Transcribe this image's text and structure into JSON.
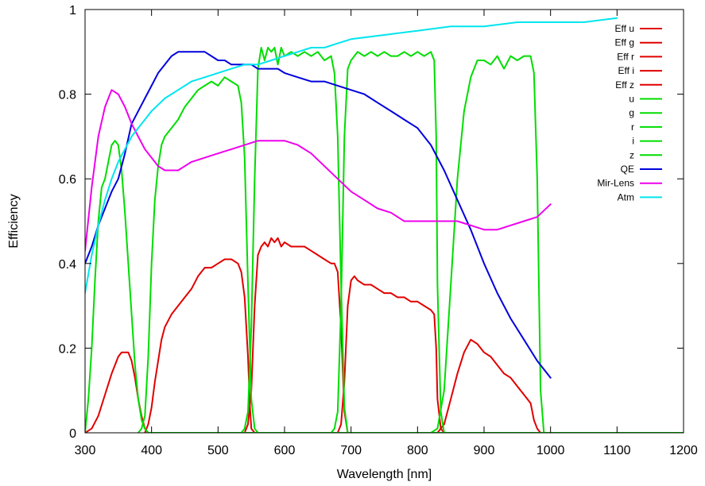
{
  "chart_data": {
    "type": "line",
    "title": "",
    "xlabel": "Wavelength [nm]",
    "ylabel": "Efficiency",
    "xlim": [
      300,
      1200
    ],
    "ylim": [
      0,
      1
    ],
    "xticks": [
      300,
      400,
      500,
      600,
      700,
      800,
      900,
      1000,
      1100,
      1200
    ],
    "yticks": [
      0,
      0.2,
      0.4,
      0.6,
      0.8,
      1
    ],
    "ytick_labels": [
      "0",
      "0.2",
      "0.4",
      "0.6",
      "0.8",
      "1"
    ],
    "grid": false,
    "legend_position": "top-right",
    "series": [
      {
        "name": "Eff u",
        "color": "#e00000",
        "x": [
          300,
          310,
          320,
          330,
          340,
          350,
          355,
          360,
          365,
          370,
          375,
          380,
          385,
          390,
          395,
          400,
          410,
          1200
        ],
        "y": [
          0,
          0.01,
          0.04,
          0.09,
          0.14,
          0.18,
          0.19,
          0.19,
          0.19,
          0.17,
          0.13,
          0.08,
          0.04,
          0.01,
          0,
          0,
          0,
          0
        ]
      },
      {
        "name": "Eff g",
        "color": "#e00000",
        "x": [
          390,
          395,
          400,
          405,
          410,
          415,
          420,
          430,
          440,
          450,
          460,
          470,
          480,
          490,
          500,
          510,
          520,
          530,
          535,
          540,
          545,
          548,
          550,
          555,
          1200
        ],
        "y": [
          0,
          0.02,
          0.06,
          0.12,
          0.17,
          0.22,
          0.25,
          0.28,
          0.3,
          0.32,
          0.34,
          0.37,
          0.39,
          0.39,
          0.4,
          0.41,
          0.41,
          0.4,
          0.38,
          0.32,
          0.18,
          0.06,
          0.01,
          0,
          0
        ]
      },
      {
        "name": "Eff r",
        "color": "#e00000",
        "x": [
          540,
          545,
          550,
          555,
          560,
          565,
          570,
          575,
          580,
          585,
          590,
          595,
          600,
          610,
          620,
          630,
          640,
          650,
          660,
          670,
          675,
          680,
          685,
          690,
          695,
          700,
          1200
        ],
        "y": [
          0,
          0.02,
          0.1,
          0.3,
          0.42,
          0.44,
          0.45,
          0.44,
          0.46,
          0.45,
          0.46,
          0.44,
          0.45,
          0.44,
          0.44,
          0.44,
          0.43,
          0.42,
          0.41,
          0.4,
          0.4,
          0.38,
          0.25,
          0.05,
          0,
          0,
          0
        ]
      },
      {
        "name": "Eff i",
        "color": "#e00000",
        "x": [
          680,
          685,
          690,
          695,
          700,
          705,
          710,
          720,
          730,
          740,
          750,
          760,
          770,
          780,
          790,
          800,
          810,
          820,
          825,
          828,
          830,
          835,
          840,
          1200
        ],
        "y": [
          0,
          0.02,
          0.12,
          0.3,
          0.36,
          0.37,
          0.36,
          0.35,
          0.35,
          0.34,
          0.33,
          0.33,
          0.32,
          0.32,
          0.31,
          0.31,
          0.3,
          0.29,
          0.28,
          0.2,
          0.08,
          0.01,
          0,
          0
        ]
      },
      {
        "name": "Eff z",
        "color": "#e00000",
        "x": [
          820,
          830,
          840,
          850,
          860,
          870,
          880,
          890,
          900,
          910,
          920,
          930,
          940,
          950,
          960,
          970,
          975,
          980,
          985,
          1200
        ],
        "y": [
          0,
          0,
          0.02,
          0.08,
          0.14,
          0.19,
          0.22,
          0.21,
          0.19,
          0.18,
          0.16,
          0.14,
          0.13,
          0.11,
          0.09,
          0.07,
          0.03,
          0.01,
          0,
          0
        ]
      },
      {
        "name": "u",
        "color": "#00dd00",
        "x": [
          300,
          305,
          310,
          315,
          320,
          325,
          330,
          335,
          340,
          345,
          350,
          355,
          360,
          365,
          370,
          375,
          380,
          385,
          390,
          395,
          400,
          1200
        ],
        "y": [
          0,
          0.08,
          0.2,
          0.36,
          0.5,
          0.58,
          0.6,
          0.64,
          0.68,
          0.69,
          0.68,
          0.62,
          0.52,
          0.4,
          0.28,
          0.16,
          0.08,
          0.03,
          0.01,
          0,
          0,
          0
        ]
      },
      {
        "name": "g",
        "color": "#00dd00",
        "x": [
          380,
          385,
          390,
          395,
          400,
          405,
          410,
          415,
          420,
          430,
          440,
          450,
          460,
          470,
          480,
          490,
          500,
          510,
          520,
          530,
          535,
          540,
          545,
          550,
          555,
          560,
          1200
        ],
        "y": [
          0,
          0.01,
          0.04,
          0.18,
          0.4,
          0.55,
          0.63,
          0.68,
          0.7,
          0.72,
          0.74,
          0.77,
          0.79,
          0.81,
          0.82,
          0.83,
          0.82,
          0.84,
          0.83,
          0.82,
          0.78,
          0.65,
          0.35,
          0.08,
          0.01,
          0,
          0
        ]
      },
      {
        "name": "r",
        "color": "#00dd00",
        "x": [
          535,
          540,
          545,
          550,
          555,
          560,
          565,
          570,
          575,
          580,
          585,
          590,
          595,
          600,
          610,
          620,
          630,
          640,
          650,
          660,
          670,
          675,
          680,
          685,
          690,
          695,
          1200
        ],
        "y": [
          0,
          0.01,
          0.05,
          0.25,
          0.6,
          0.86,
          0.91,
          0.88,
          0.91,
          0.9,
          0.91,
          0.87,
          0.91,
          0.89,
          0.9,
          0.89,
          0.9,
          0.89,
          0.9,
          0.88,
          0.89,
          0.85,
          0.7,
          0.35,
          0.06,
          0,
          0
        ]
      },
      {
        "name": "i",
        "color": "#00dd00",
        "x": [
          670,
          675,
          680,
          685,
          690,
          695,
          700,
          710,
          720,
          730,
          740,
          750,
          760,
          770,
          780,
          790,
          800,
          810,
          820,
          825,
          828,
          830,
          835,
          840,
          1200
        ],
        "y": [
          0,
          0.01,
          0.05,
          0.3,
          0.7,
          0.86,
          0.88,
          0.9,
          0.89,
          0.9,
          0.89,
          0.9,
          0.89,
          0.89,
          0.9,
          0.89,
          0.9,
          0.89,
          0.9,
          0.88,
          0.7,
          0.35,
          0.05,
          0,
          0
        ]
      },
      {
        "name": "z",
        "color": "#00dd00",
        "x": [
          820,
          830,
          840,
          850,
          860,
          870,
          880,
          890,
          900,
          910,
          920,
          930,
          940,
          950,
          960,
          970,
          975,
          980,
          985,
          990,
          1200
        ],
        "y": [
          0,
          0.01,
          0.1,
          0.35,
          0.6,
          0.76,
          0.84,
          0.88,
          0.88,
          0.87,
          0.89,
          0.86,
          0.89,
          0.88,
          0.89,
          0.89,
          0.85,
          0.6,
          0.1,
          0,
          0
        ]
      },
      {
        "name": "QE",
        "color": "#0000dd",
        "x": [
          300,
          310,
          320,
          330,
          340,
          350,
          360,
          370,
          380,
          390,
          400,
          410,
          420,
          430,
          440,
          450,
          460,
          470,
          480,
          490,
          500,
          510,
          520,
          530,
          540,
          550,
          560,
          570,
          580,
          590,
          600,
          620,
          640,
          660,
          680,
          700,
          720,
          740,
          760,
          780,
          800,
          820,
          840,
          860,
          880,
          900,
          920,
          940,
          960,
          980,
          1000
        ],
        "y": [
          0.4,
          0.44,
          0.49,
          0.53,
          0.57,
          0.6,
          0.66,
          0.73,
          0.76,
          0.79,
          0.82,
          0.85,
          0.87,
          0.89,
          0.9,
          0.9,
          0.9,
          0.9,
          0.9,
          0.89,
          0.88,
          0.88,
          0.87,
          0.87,
          0.87,
          0.87,
          0.86,
          0.86,
          0.86,
          0.86,
          0.85,
          0.84,
          0.83,
          0.83,
          0.82,
          0.81,
          0.8,
          0.78,
          0.76,
          0.74,
          0.72,
          0.68,
          0.62,
          0.55,
          0.48,
          0.4,
          0.33,
          0.27,
          0.22,
          0.17,
          0.13
        ]
      },
      {
        "name": "Mir-Lens",
        "color": "#ee00ee",
        "x": [
          300,
          310,
          320,
          330,
          340,
          350,
          360,
          370,
          380,
          390,
          400,
          410,
          420,
          430,
          440,
          450,
          460,
          480,
          500,
          520,
          540,
          560,
          580,
          600,
          620,
          640,
          660,
          680,
          700,
          720,
          740,
          760,
          780,
          800,
          820,
          840,
          860,
          880,
          900,
          920,
          940,
          960,
          980,
          1000
        ],
        "y": [
          0.43,
          0.58,
          0.7,
          0.77,
          0.81,
          0.8,
          0.77,
          0.73,
          0.7,
          0.67,
          0.65,
          0.63,
          0.62,
          0.62,
          0.62,
          0.63,
          0.64,
          0.65,
          0.66,
          0.67,
          0.68,
          0.69,
          0.69,
          0.69,
          0.68,
          0.66,
          0.63,
          0.6,
          0.57,
          0.55,
          0.53,
          0.52,
          0.5,
          0.5,
          0.5,
          0.5,
          0.5,
          0.49,
          0.48,
          0.48,
          0.49,
          0.5,
          0.51,
          0.54
        ]
      },
      {
        "name": "Atm",
        "color": "#00e5ee",
        "x": [
          300,
          310,
          320,
          330,
          340,
          350,
          360,
          370,
          380,
          390,
          400,
          420,
          440,
          460,
          480,
          500,
          520,
          540,
          560,
          580,
          600,
          620,
          640,
          660,
          680,
          700,
          750,
          800,
          850,
          900,
          950,
          1000,
          1050,
          1100
        ],
        "y": [
          0.33,
          0.42,
          0.49,
          0.55,
          0.6,
          0.64,
          0.67,
          0.7,
          0.72,
          0.74,
          0.76,
          0.79,
          0.81,
          0.83,
          0.84,
          0.85,
          0.86,
          0.87,
          0.87,
          0.88,
          0.89,
          0.9,
          0.91,
          0.91,
          0.92,
          0.93,
          0.94,
          0.95,
          0.96,
          0.96,
          0.97,
          0.97,
          0.97,
          0.98
        ]
      }
    ]
  }
}
